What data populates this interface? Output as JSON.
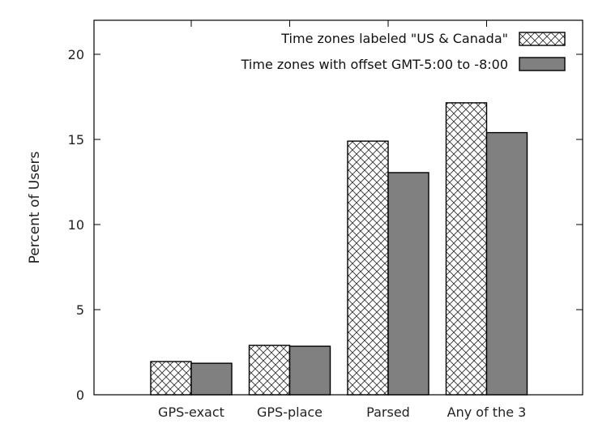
{
  "chart_data": {
    "type": "bar",
    "categories": [
      "GPS-exact",
      "GPS-place",
      "Parsed",
      "Any of the 3"
    ],
    "series": [
      {
        "name": "Time zones labeled \"US & Canada\"",
        "values": [
          1.95,
          2.9,
          14.9,
          17.15
        ],
        "pattern": "crosshatch",
        "color": "#ffffff"
      },
      {
        "name": "Time zones with offset GMT-5:00 to -8:00",
        "values": [
          1.85,
          2.85,
          13.05,
          15.4
        ],
        "pattern": "solid",
        "color": "#808080"
      }
    ],
    "xlabel": "",
    "ylabel": "Percent of Users",
    "ylim": [
      0,
      22
    ],
    "yticks": [
      0,
      5,
      10,
      15,
      20
    ],
    "grid": false,
    "legend_position": "top-right"
  }
}
